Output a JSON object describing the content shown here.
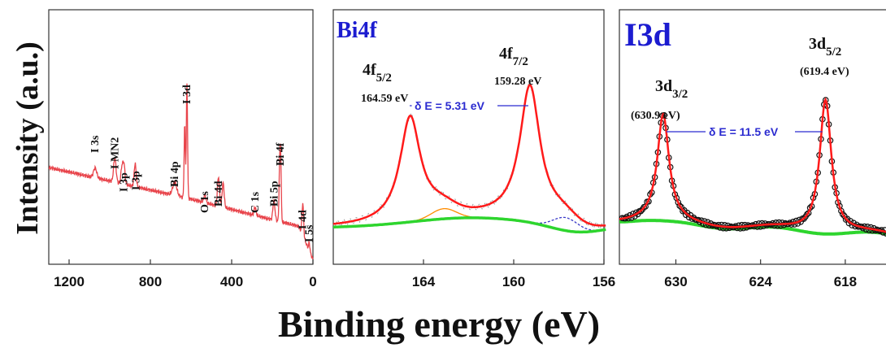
{
  "figure": {
    "ylabel": "Intensity (a.u.)",
    "xlabel": "Binding energy (eV)"
  },
  "chart_data": [
    {
      "type": "line",
      "panel": "survey",
      "xlim": [
        1300,
        0
      ],
      "xticks": [
        "1200",
        "800",
        "400",
        "0"
      ],
      "xtick_values": [
        1200,
        800,
        400,
        0
      ],
      "ylim": [
        0,
        1
      ],
      "colors": {
        "line": "#e8434a"
      },
      "peak_labels": [
        {
          "text": "I 3s",
          "x": 1072,
          "y": 0.54
        },
        {
          "text": "I MN2",
          "x": 975,
          "y": 0.44
        },
        {
          "text": "I 3p",
          "x": 930,
          "y": 0.3
        },
        {
          "text": "I 3p",
          "x": 870,
          "y": 0.31
        },
        {
          "text": "Bi 4p",
          "x": 680,
          "y": 0.33
        },
        {
          "text": "I 3d",
          "x": 620,
          "y": 0.84
        },
        {
          "text": "O 1s",
          "x": 532,
          "y": 0.17
        },
        {
          "text": "Bi 4d",
          "x": 465,
          "y": 0.21
        },
        {
          "text": "C 1s",
          "x": 285,
          "y": 0.17
        },
        {
          "text": "Bi 5p",
          "x": 190,
          "y": 0.21
        },
        {
          "text": "Bi 4f",
          "x": 160,
          "y": 0.46
        },
        {
          "text": "I 4d",
          "x": 50,
          "y": 0.07
        },
        {
          "text": "I 5s",
          "x": 18,
          "y": -0.01
        }
      ]
    },
    {
      "type": "line",
      "panel": "Bi4f",
      "title": "Bi4f",
      "xlim": [
        168,
        156
      ],
      "xticks": [
        "164",
        "160",
        "156"
      ],
      "xtick_values": [
        164,
        160,
        156
      ],
      "ylim": [
        0,
        1
      ],
      "colors": {
        "fit": "#ff1a1a",
        "background": "#2ed52e",
        "raw": "#9a9a9a",
        "comp1": "#ff8c00",
        "comp2": "#3b3bc8",
        "annotation": "#2b2bd0",
        "title": "#1c1cd0"
      },
      "peaks": [
        {
          "label": "4f",
          "subscript": "5/2",
          "energy_label": "164.59 eV",
          "x": 164.59,
          "y": 0.92
        },
        {
          "label": "4f",
          "subscript": "7/2",
          "energy_label": "159.28 eV",
          "x": 159.28,
          "y": 0.94
        }
      ],
      "splitting_label": "δ E = 5.31 eV"
    },
    {
      "type": "scatter",
      "panel": "I3d",
      "title": "I3d",
      "xlim": [
        634,
        615
      ],
      "xticks": [
        "630",
        "624",
        "618"
      ],
      "xtick_values": [
        630,
        624,
        618
      ],
      "ylim": [
        0,
        1
      ],
      "colors": {
        "fit": "#ff1a1a",
        "background": "#2ed52e",
        "points": "#111111",
        "annotation": "#2b2bd0",
        "title": "#1c1cd0"
      },
      "peaks": [
        {
          "label": "3d",
          "subscript": "3/2",
          "energy_label": "(630.9 eV)",
          "x": 630.9,
          "y": 0.76
        },
        {
          "label": "3d",
          "subscript": "5/2",
          "energy_label": "(619.4 eV)",
          "x": 619.4,
          "y": 0.94
        }
      ],
      "splitting_label": "δ E = 11.5 eV"
    }
  ]
}
